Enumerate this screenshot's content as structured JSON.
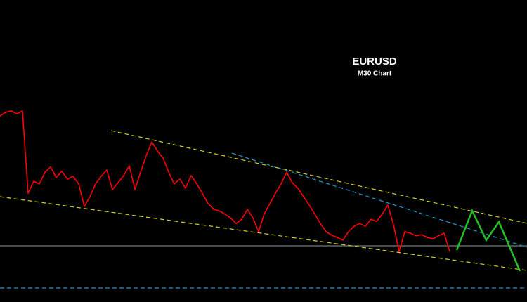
{
  "chart_data": {
    "type": "line",
    "title": "EURUSD",
    "subtitle": "M30 Chart",
    "ylim": [
      0,
      100
    ],
    "series": [
      {
        "color": "#ff0000",
        "values": [
          61.6,
          62.8,
          63.3,
          62.3,
          63.3,
          36.0,
          40.0,
          39.1,
          43.0,
          44.7,
          41.2,
          43.3,
          40.7,
          41.6,
          39.1,
          31.6,
          34.9,
          39.1,
          41.6,
          43.7,
          37.2,
          39.5,
          41.9,
          45.1,
          37.2,
          43.0,
          48.4,
          53.0,
          50.0,
          47.7,
          43.0,
          39.1,
          40.7,
          37.7,
          41.9,
          39.1,
          36.0,
          32.6,
          30.7,
          30.2,
          29.1,
          27.9,
          26.0,
          27.4,
          30.7,
          27.9,
          23.3,
          29.1,
          32.6,
          36.0,
          39.1,
          43.0,
          39.5,
          37.7,
          34.9,
          32.1,
          29.1,
          26.0,
          23.3,
          22.1,
          21.4,
          20.5,
          23.3,
          25.1,
          26.0,
          25.1,
          27.4,
          26.7,
          29.1,
          32.1,
          25.6,
          16.7,
          23.3,
          22.8,
          21.9,
          22.3,
          21.4,
          20.9,
          21.9,
          22.8,
          16.7
        ]
      }
    ]
  }
}
